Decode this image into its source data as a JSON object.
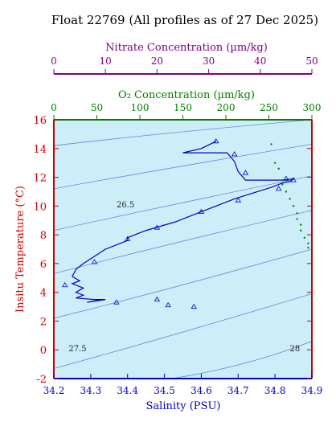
{
  "chart_data": {
    "type": "scatter",
    "title": "Float 22769  (All profiles as of 27 Dec 2025)",
    "xlabel": "Salinity (PSU)",
    "ylabel": "Insitu Temperature (°C)",
    "xlim": [
      34.2,
      34.9
    ],
    "ylim": [
      -2,
      16
    ],
    "x_ticks": [
      "34.2",
      "34.3",
      "34.4",
      "34.5",
      "34.6",
      "34.7",
      "34.8",
      "34.9"
    ],
    "y_ticks": [
      "-2",
      "0",
      "2",
      "4",
      "6",
      "8",
      "10",
      "12",
      "14",
      "16"
    ],
    "top_axis_1": {
      "label": "O₂ Concentration (µm/kg)",
      "range": [
        0,
        300
      ],
      "ticks": [
        "0",
        "50",
        "100",
        "150",
        "200",
        "250",
        "300"
      ],
      "color": "#008000"
    },
    "top_axis_2": {
      "label": "Nitrate Concentration (µm/kg)",
      "range": [
        0,
        50
      ],
      "ticks": [
        "0",
        "10",
        "20",
        "30",
        "40",
        "50"
      ],
      "color": "#800080"
    },
    "density_contour_labels": [
      {
        "text": "26.5",
        "x": 34.37,
        "y": 9.9
      },
      {
        "text": "27.5",
        "x": 34.24,
        "y": -0.1
      },
      {
        "text": "28",
        "x": 34.84,
        "y": -0.1
      }
    ],
    "grid": false,
    "colors": {
      "plot_bg": "#cdeef8",
      "ts_line": "#0000cc",
      "contour": "#6688dd",
      "left_axis": "#cc0000",
      "bottom_axis": "#0000cc",
      "oxygen": "#008000",
      "nitrate": "#800080"
    },
    "series": [
      {
        "type": "line",
        "points": [
          [
            34.64,
            14.5
          ],
          [
            34.6,
            14.0
          ],
          [
            34.55,
            13.7
          ],
          [
            34.62,
            13.7
          ],
          [
            34.67,
            13.7
          ],
          [
            34.69,
            13.1
          ],
          [
            34.7,
            12.4
          ],
          [
            34.72,
            11.8
          ],
          [
            34.76,
            11.8
          ],
          [
            34.82,
            11.8
          ],
          [
            34.85,
            11.9
          ],
          [
            34.84,
            11.7
          ],
          [
            34.82,
            11.6
          ],
          [
            34.79,
            11.3
          ],
          [
            34.74,
            10.9
          ],
          [
            34.69,
            10.5
          ],
          [
            34.65,
            10.1
          ],
          [
            34.61,
            9.7
          ],
          [
            34.57,
            9.3
          ],
          [
            34.53,
            8.9
          ],
          [
            34.49,
            8.6
          ],
          [
            34.45,
            8.3
          ],
          [
            34.42,
            8.0
          ],
          [
            34.4,
            7.8
          ],
          [
            34.4,
            7.6
          ],
          [
            34.38,
            7.4
          ],
          [
            34.34,
            7.0
          ],
          [
            34.31,
            6.5
          ],
          [
            34.28,
            6.0
          ],
          [
            34.26,
            5.6
          ],
          [
            34.25,
            5.1
          ],
          [
            34.27,
            4.8
          ],
          [
            34.25,
            4.6
          ],
          [
            34.28,
            4.3
          ],
          [
            34.26,
            4.0
          ],
          [
            34.28,
            3.8
          ],
          [
            34.26,
            3.6
          ],
          [
            34.31,
            3.5
          ],
          [
            34.34,
            3.5
          ],
          [
            34.29,
            3.3
          ],
          [
            34.33,
            3.5
          ]
        ]
      },
      {
        "type": "triangles",
        "points": [
          [
            34.64,
            14.5
          ],
          [
            34.69,
            13.6
          ],
          [
            34.72,
            12.3
          ],
          [
            34.83,
            11.9
          ],
          [
            34.85,
            11.8
          ],
          [
            34.81,
            11.2
          ],
          [
            34.7,
            10.4
          ],
          [
            34.6,
            9.6
          ],
          [
            34.48,
            8.5
          ],
          [
            34.4,
            7.7
          ],
          [
            34.31,
            6.1
          ],
          [
            34.23,
            4.5
          ],
          [
            34.37,
            3.3
          ],
          [
            34.48,
            3.5
          ],
          [
            34.51,
            3.1
          ],
          [
            34.58,
            3.0
          ]
        ]
      },
      {
        "type": "oxygen_dots",
        "points": [
          [
            34.79,
            14.3
          ],
          [
            34.8,
            13.0
          ],
          [
            34.81,
            12.6
          ],
          [
            34.82,
            11.8
          ],
          [
            34.82,
            11.5
          ],
          [
            34.83,
            11.0
          ],
          [
            34.84,
            10.5
          ],
          [
            34.85,
            10.0
          ],
          [
            34.86,
            9.5
          ],
          [
            34.86,
            9.1
          ],
          [
            34.87,
            8.7
          ],
          [
            34.87,
            8.3
          ],
          [
            34.88,
            7.8
          ],
          [
            34.89,
            7.4
          ],
          [
            34.89,
            7.1
          ]
        ]
      }
    ]
  }
}
